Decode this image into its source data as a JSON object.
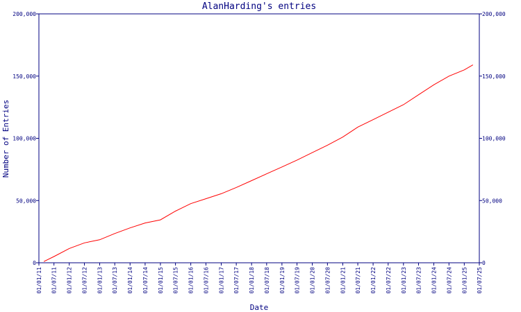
{
  "chart_data": {
    "type": "line",
    "title": "AlanHarding's entries",
    "xlabel": "Date",
    "ylabel": "Number of Entries",
    "ylim": [
      0,
      200000
    ],
    "y_ticks": [
      0,
      50000,
      100000,
      150000,
      200000
    ],
    "y_tick_labels": [
      "0",
      "50,000",
      "100,000",
      "150,000",
      "200,000"
    ],
    "x_range": [
      "2011-01-01",
      "2025-07-01"
    ],
    "x_tick_labels": [
      "01/01/11",
      "01/07/11",
      "01/01/12",
      "01/07/12",
      "01/01/13",
      "01/07/13",
      "01/01/14",
      "01/07/14",
      "01/01/15",
      "01/07/15",
      "01/01/16",
      "01/07/16",
      "01/01/17",
      "01/07/17",
      "01/01/18",
      "01/07/18",
      "01/01/19",
      "01/07/19",
      "01/01/20",
      "01/07/20",
      "01/01/21",
      "01/07/21",
      "01/01/22",
      "01/07/22",
      "01/01/23",
      "01/07/23",
      "01/01/24",
      "01/07/24",
      "01/01/25",
      "01/07/25"
    ],
    "grid": false,
    "line_color": "#ff0000",
    "axis_color": "#000080",
    "series": [
      {
        "x": [
          "2011-03-01",
          "2011-07-01",
          "2012-01-01",
          "2012-07-01",
          "2013-01-01",
          "2013-07-01",
          "2014-01-01",
          "2014-07-01",
          "2015-01-01",
          "2015-07-01",
          "2016-01-01",
          "2016-07-01",
          "2017-01-01",
          "2017-07-01",
          "2018-01-01",
          "2018-07-01",
          "2019-01-01",
          "2019-07-01",
          "2020-01-01",
          "2020-07-01",
          "2021-01-01",
          "2021-07-01",
          "2022-01-01",
          "2022-07-01",
          "2023-01-01",
          "2023-07-01",
          "2024-01-01",
          "2024-07-01",
          "2025-01-01",
          "2025-04-15"
        ],
        "y": [
          1000,
          5000,
          11500,
          16000,
          18500,
          23500,
          28000,
          32000,
          34500,
          41500,
          47500,
          51500,
          55500,
          60500,
          66000,
          71500,
          77000,
          82500,
          88500,
          94500,
          101000,
          109000,
          115000,
          121000,
          127000,
          135000,
          143000,
          150000,
          155000,
          159000
        ]
      }
    ]
  }
}
